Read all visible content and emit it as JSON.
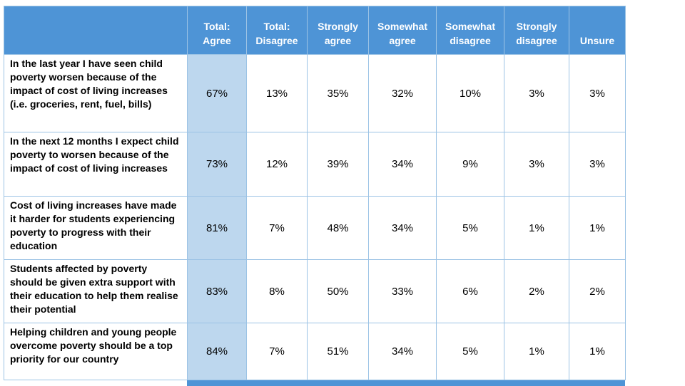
{
  "colors": {
    "header_bg": "#4E94D6",
    "highlight_column_bg": "#BDD7EE",
    "border": "#9CC3E5",
    "header_text": "#FFFFFF",
    "body_text": "#000000"
  },
  "chart_data": {
    "type": "table",
    "title": "",
    "columns": [
      "",
      "Total: Agree",
      "Total: Disagree",
      "Strongly agree",
      "Somewhat agree",
      "Somewhat disagree",
      "Strongly disagree",
      "Unsure"
    ],
    "highlighted_column": "Total: Agree",
    "rows": [
      {
        "label": "In the last year I have seen child poverty worsen because of the impact of cost of living increases (i.e. groceries, rent, fuel, bills)",
        "values": [
          "67%",
          "13%",
          "35%",
          "32%",
          "10%",
          "3%",
          "3%"
        ]
      },
      {
        "label": "In the next 12 months I expect child poverty to worsen because of the impact of cost of living increases",
        "values": [
          "73%",
          "12%",
          "39%",
          "34%",
          "9%",
          "3%",
          "3%"
        ]
      },
      {
        "label": "Cost of living increases have made it harder for students experiencing poverty to progress with their education",
        "values": [
          "81%",
          "7%",
          "48%",
          "34%",
          "5%",
          "1%",
          "1%"
        ]
      },
      {
        "label": "Students affected by poverty should be given extra support with their education to help them realise their potential",
        "values": [
          "83%",
          "8%",
          "50%",
          "33%",
          "6%",
          "2%",
          "2%"
        ]
      },
      {
        "label": "Helping children and young people overcome poverty should be a top priority for our country",
        "values": [
          "84%",
          "7%",
          "51%",
          "34%",
          "5%",
          "1%",
          "1%"
        ]
      }
    ]
  }
}
